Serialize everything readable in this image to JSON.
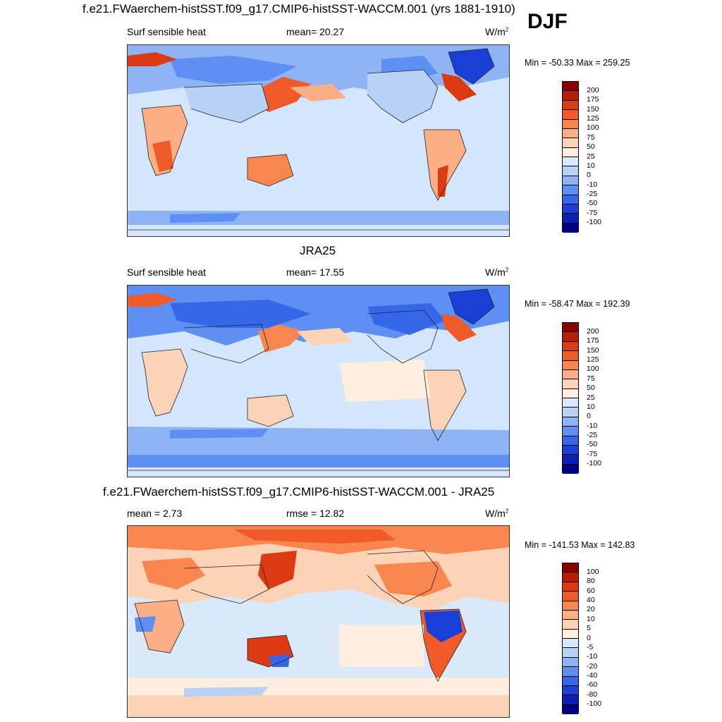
{
  "season": "DJF",
  "panels": [
    {
      "title": "f.e21.FWaerchem-histSST.f09_g17.CMIP6-histSST-WACCM.001 (yrs 1881-1910)",
      "left_label": "Surf sensible heat",
      "center_label": "mean=  20.27",
      "units": "W/m",
      "units_sup": "2",
      "minmax": "Min = -50.33 Max = 259.25",
      "ticks": [
        "200",
        "175",
        "150",
        "125",
        "100",
        "75",
        "50",
        "25",
        "10",
        "0",
        "-10",
        "-25",
        "-50",
        "-75",
        "-100"
      ]
    },
    {
      "title": "JRA25",
      "left_label": "Surf sensible heat",
      "center_label": "mean=  17.55",
      "units": "W/m",
      "units_sup": "2",
      "minmax": "Min = -58.47 Max = 192.39",
      "ticks": [
        "200",
        "175",
        "150",
        "125",
        "100",
        "75",
        "50",
        "25",
        "10",
        "0",
        "-10",
        "-25",
        "-50",
        "-75",
        "-100"
      ]
    },
    {
      "title": "f.e21.FWaerchem-histSST.f09_g17.CMIP6-histSST-WACCM.001 - JRA25",
      "left_label": "mean =   2.73",
      "center_label": "rmse =  12.82",
      "units": "W/m",
      "units_sup": "2",
      "minmax": "Min = -141.53 Max = 142.83",
      "ticks": [
        "100",
        "80",
        "60",
        "40",
        "20",
        "10",
        "5",
        "0",
        "-5",
        "-10",
        "-20",
        "-40",
        "-60",
        "-80",
        "-100"
      ]
    }
  ],
  "colors": {
    "scale": [
      "#8b0000",
      "#b81d0a",
      "#dc3a12",
      "#f05a28",
      "#f9864f",
      "#fcae85",
      "#fdd3b8",
      "#fdeee0",
      "#d9e8fa",
      "#b8d2f7",
      "#8fb4f5",
      "#5e8ff2",
      "#3567e8",
      "#1a3fd6",
      "#0b1fb0",
      "#000080"
    ],
    "ocean": "#d4e6fb",
    "coast": "#222222"
  }
}
